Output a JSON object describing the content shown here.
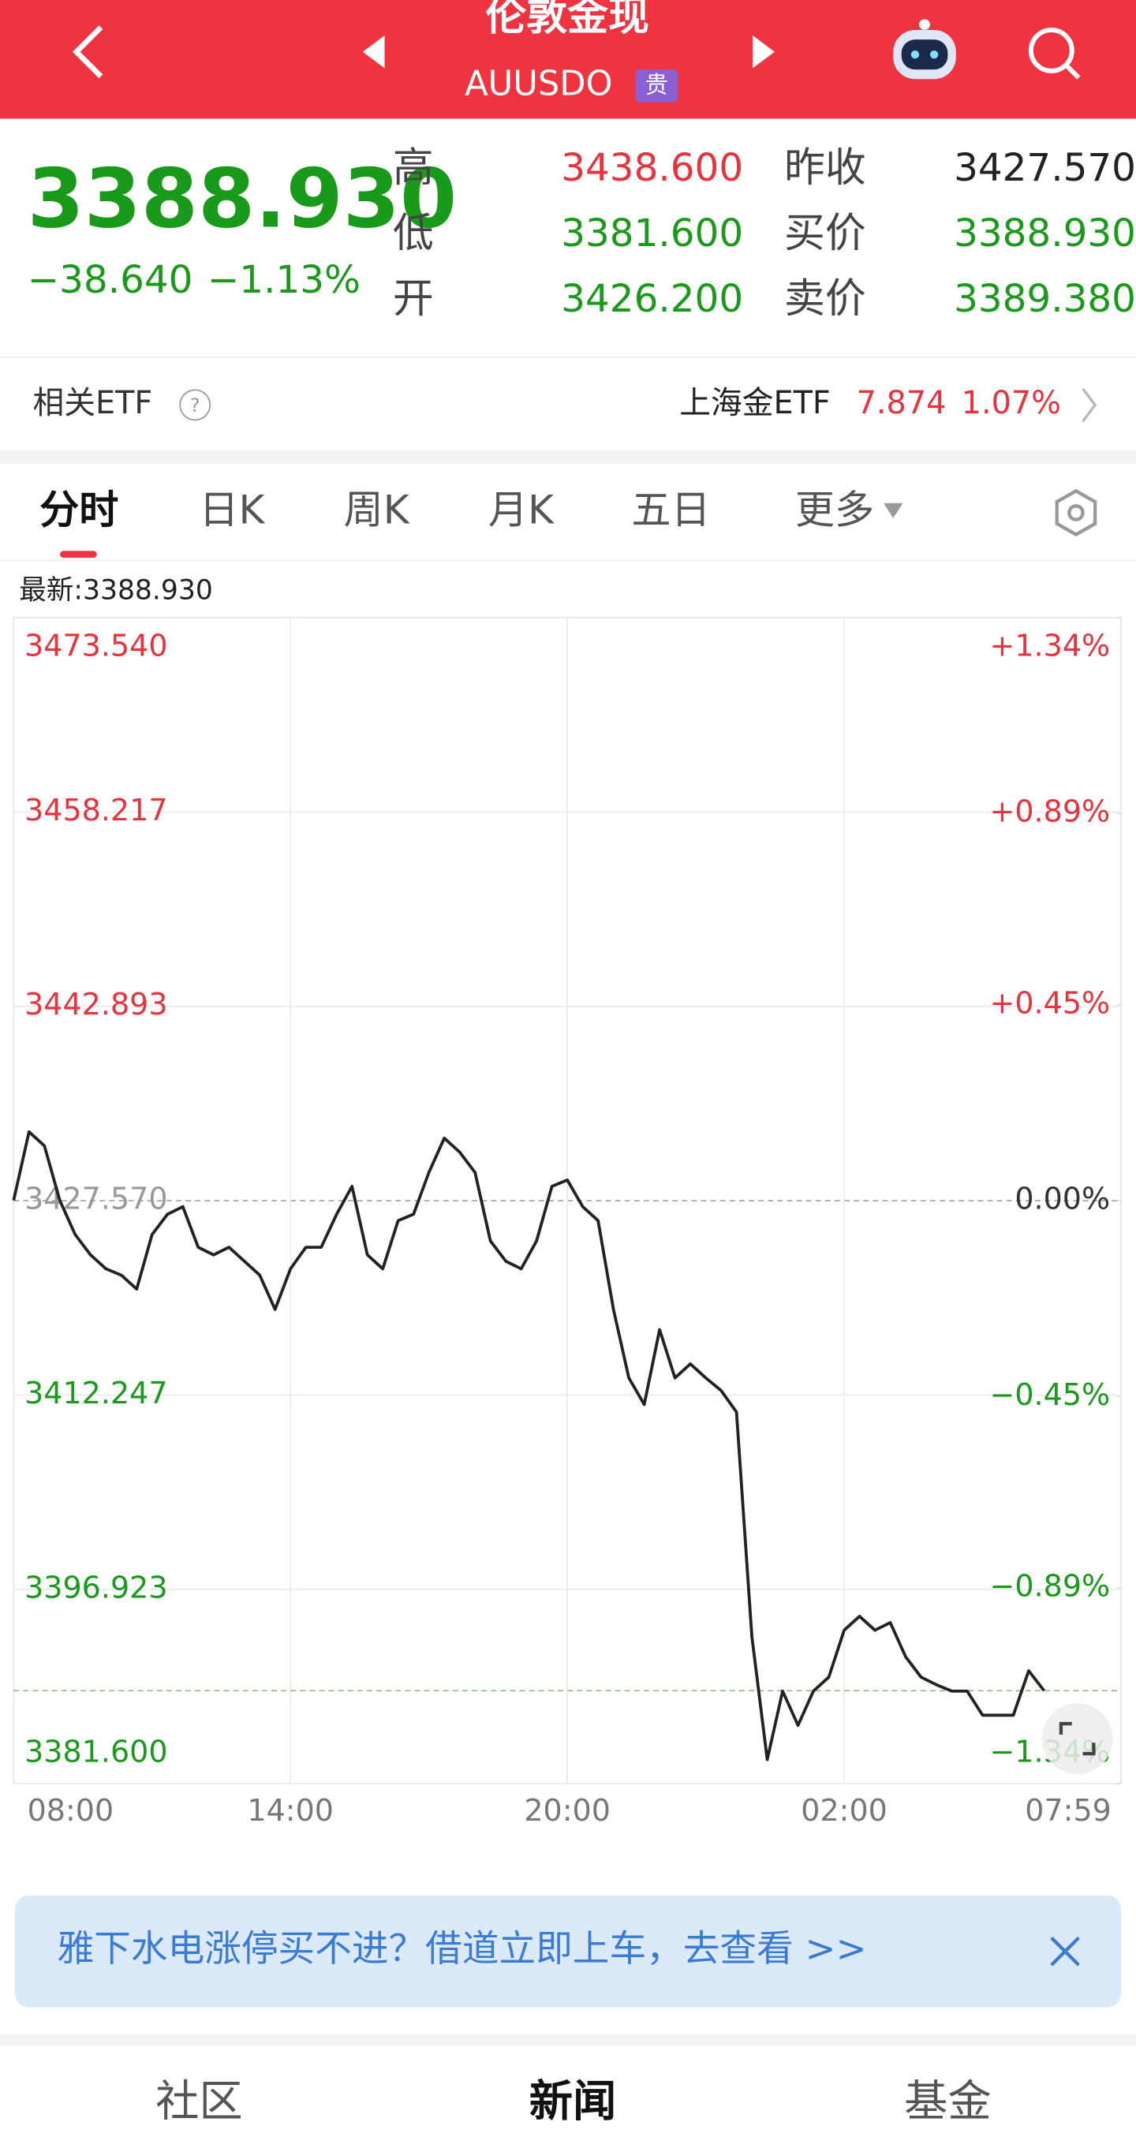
{
  "header": {
    "title": "伦敦金现",
    "code": "AUUSDO",
    "badge": "贵"
  },
  "quote": {
    "price": "3388.930",
    "change": "−38.640",
    "change_pct": "−1.13%",
    "stats": [
      {
        "label": "高",
        "value": "3438.600",
        "color": "#e8323c"
      },
      {
        "label": "低",
        "value": "3381.600",
        "color": "#1a9a1a"
      },
      {
        "label": "开",
        "value": "3426.200",
        "color": "#1a9a1a"
      },
      {
        "label": "昨收",
        "value": "3427.570",
        "color": "#222222"
      },
      {
        "label": "买价",
        "value": "3388.930",
        "color": "#1a9a1a"
      },
      {
        "label": "卖价",
        "value": "3389.380",
        "color": "#1a9a1a"
      }
    ]
  },
  "etf": {
    "label": "相关ETF",
    "name": "上海金ETF",
    "price": "7.874",
    "change_pct": "1.07%"
  },
  "tabs": [
    "分时",
    "日K",
    "周K",
    "月K",
    "五日",
    "更多"
  ],
  "chart_data": {
    "type": "line",
    "latest_label": "最新:3388.930",
    "latest": 3388.93,
    "base": 3427.57,
    "categories": [
      "08:00",
      null,
      null,
      null,
      null,
      null,
      null,
      null,
      null,
      null,
      null,
      null,
      null,
      null,
      null,
      null,
      null,
      null,
      "14:00",
      null,
      null,
      null,
      null,
      null,
      null,
      null,
      null,
      null,
      null,
      null,
      null,
      null,
      null,
      null,
      null,
      null,
      "20:00",
      null,
      null,
      null,
      null,
      null,
      null,
      null,
      null,
      null,
      null,
      null,
      null,
      null,
      null,
      null,
      null,
      null,
      "02:00",
      null,
      null,
      null,
      null,
      null,
      null,
      null,
      null,
      null,
      null,
      null,
      null,
      null,
      null,
      null,
      null,
      null,
      "07:59"
    ],
    "values": [
      3427.6,
      3433.0,
      3431.9,
      3427.6,
      3424.9,
      3423.3,
      3422.2,
      3421.7,
      3420.6,
      3424.9,
      3426.5,
      3427.1,
      3423.9,
      3423.3,
      3423.9,
      3422.8,
      3421.7,
      3419.0,
      3422.2,
      3423.9,
      3423.9,
      3426.5,
      3428.7,
      3423.3,
      3422.2,
      3426.0,
      3426.5,
      3429.8,
      3432.5,
      3431.4,
      3429.8,
      3424.4,
      3422.8,
      3422.2,
      3424.4,
      3428.7,
      3429.2,
      3427.1,
      3426.0,
      3419.0,
      3413.6,
      3411.5,
      3417.4,
      3413.6,
      3414.7,
      3413.6,
      3412.6,
      3410.9,
      3393.2,
      3383.5,
      3388.9,
      3386.2,
      3388.9,
      3390.0,
      3393.7,
      3394.8,
      3393.7,
      3394.3,
      3391.6,
      3390.0,
      3389.4,
      3388.9,
      3388.9,
      3387.0,
      3387.0,
      3387.0,
      3390.5,
      3388.93,
      null,
      null,
      null,
      null,
      null
    ],
    "color": "#222222",
    "ylim": [
      3381.6,
      3473.54
    ],
    "yticks": [
      {
        "value": 3473.54,
        "label": "3473.540"
      },
      {
        "value": 3458.217,
        "label": "3458.217"
      },
      {
        "value": 3442.893,
        "label": "3442.893"
      },
      {
        "value": 3427.57,
        "label": "3427.570"
      },
      {
        "value": 3412.247,
        "label": "3412.247"
      },
      {
        "value": 3396.923,
        "label": "3396.923"
      },
      {
        "value": 3381.6,
        "label": "3381.600"
      }
    ],
    "y2lim": [
      -1.34,
      1.34
    ],
    "y2ticks": [
      {
        "value": 1.34,
        "label": "+1.34%"
      },
      {
        "value": 0.89,
        "label": "+0.89%"
      },
      {
        "value": 0.45,
        "label": "+0.45%"
      },
      {
        "value": 0,
        "label": "0.00%"
      },
      {
        "value": -0.45,
        "label": "−0.45%"
      },
      {
        "value": -0.89,
        "label": "−0.89%"
      },
      {
        "value": -1.34,
        "label": "−1.34%"
      }
    ],
    "grid": true
  },
  "banner": {
    "text": "雅下水电涨停买不进？借道立即上车，去查看 >>"
  },
  "bottom_tabs": [
    "社区",
    "新闻",
    "基金"
  ]
}
